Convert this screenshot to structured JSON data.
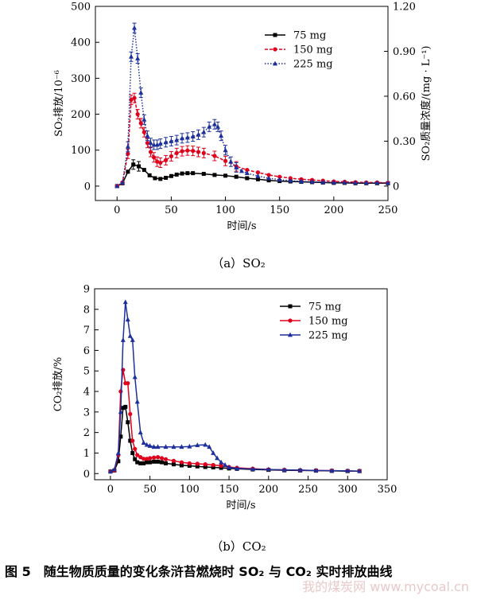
{
  "chart_data": [
    {
      "type": "line",
      "panel_caption": "（a）SO₂",
      "xlabel": "时间/s",
      "ylabel": "SO₂排放/10⁻⁶",
      "y2label": "SO₂质量浓度/(mg · L⁻¹)",
      "xlim": [
        -20,
        250
      ],
      "ylim": [
        -40,
        500
      ],
      "y2lim": [
        -0.096,
        1.2
      ],
      "xticks": [
        0,
        50,
        100,
        150,
        200,
        250
      ],
      "yticks": [
        0,
        100,
        200,
        300,
        400,
        500
      ],
      "y2ticks": [
        "0",
        "0.30",
        "0.60",
        "0.90",
        "1.20"
      ],
      "legend_position": "top-right",
      "series": [
        {
          "name": "75 mg",
          "color": "#000000",
          "marker": "square",
          "linestyle": "solid",
          "x": [
            0,
            5,
            10,
            15,
            20,
            25,
            30,
            35,
            40,
            45,
            50,
            55,
            60,
            65,
            70,
            80,
            90,
            100,
            110,
            120,
            130,
            140,
            150,
            160,
            170,
            180,
            190,
            200,
            210,
            220,
            230,
            240,
            250
          ],
          "y": [
            0,
            8,
            40,
            60,
            55,
            45,
            30,
            22,
            20,
            23,
            28,
            32,
            35,
            36,
            36,
            34,
            31,
            29,
            26,
            22,
            19,
            16,
            14,
            13,
            12,
            11,
            10,
            9,
            9,
            8,
            8,
            8,
            8
          ]
        },
        {
          "name": "150 mg",
          "color": "#e0001b",
          "marker": "circle",
          "linestyle": "dashed",
          "x": [
            0,
            5,
            10,
            13,
            16,
            19,
            22,
            25,
            28,
            31,
            34,
            37,
            40,
            45,
            50,
            55,
            60,
            65,
            70,
            75,
            80,
            90,
            100,
            110,
            120,
            130,
            140,
            150,
            160,
            170,
            180,
            190,
            200,
            210,
            220,
            230,
            240,
            250
          ],
          "y": [
            0,
            10,
            90,
            240,
            245,
            200,
            175,
            150,
            120,
            95,
            80,
            68,
            65,
            72,
            83,
            92,
            97,
            99,
            98,
            95,
            92,
            84,
            70,
            55,
            45,
            38,
            31,
            26,
            22,
            19,
            17,
            15,
            13,
            12,
            11,
            10,
            10,
            9
          ]
        },
        {
          "name": "225 mg",
          "color": "#1c2f9c",
          "marker": "triangle",
          "linestyle": "dotted",
          "x": [
            0,
            5,
            10,
            13,
            16,
            19,
            22,
            25,
            28,
            31,
            34,
            37,
            40,
            45,
            50,
            55,
            60,
            65,
            70,
            75,
            80,
            85,
            90,
            93,
            96,
            100,
            105,
            110,
            115,
            120,
            130,
            140,
            150,
            160,
            170,
            180,
            190,
            200,
            210,
            220,
            230,
            240,
            250
          ],
          "y": [
            0,
            10,
            110,
            360,
            440,
            355,
            260,
            185,
            140,
            120,
            115,
            115,
            118,
            122,
            125,
            128,
            133,
            135,
            138,
            143,
            150,
            165,
            172,
            165,
            140,
            100,
            68,
            52,
            42,
            36,
            28,
            22,
            18,
            15,
            13,
            12,
            11,
            10,
            10,
            9,
            9,
            9,
            9
          ]
        }
      ]
    },
    {
      "type": "line",
      "panel_caption": "（b）CO₂",
      "xlabel": "时间/s",
      "ylabel": "CO₂排放/%",
      "xlim": [
        -20,
        350
      ],
      "ylim": [
        -0.3,
        9
      ],
      "xticks": [
        0,
        50,
        100,
        150,
        200,
        250,
        300,
        350
      ],
      "yticks": [
        0,
        1,
        2,
        3,
        4,
        5,
        6,
        7,
        8,
        9
      ],
      "legend_position": "top-right",
      "series": [
        {
          "name": "75 mg",
          "color": "#000000",
          "marker": "square",
          "linestyle": "solid",
          "x": [
            0,
            5,
            10,
            13,
            16,
            19,
            22,
            25,
            28,
            31,
            34,
            38,
            42,
            46,
            50,
            55,
            60,
            65,
            70,
            80,
            90,
            100,
            110,
            120,
            130,
            140,
            150,
            160,
            180,
            200,
            220,
            240,
            260,
            280,
            300,
            315
          ],
          "y": [
            0.1,
            0.15,
            0.6,
            1.8,
            3.2,
            3.25,
            2.5,
            1.6,
            1.0,
            0.7,
            0.55,
            0.5,
            0.5,
            0.55,
            0.55,
            0.58,
            0.58,
            0.55,
            0.5,
            0.45,
            0.4,
            0.38,
            0.35,
            0.32,
            0.3,
            0.28,
            0.25,
            0.23,
            0.2,
            0.18,
            0.16,
            0.15,
            0.14,
            0.13,
            0.12,
            0.12
          ]
        },
        {
          "name": "150 mg",
          "color": "#e0001b",
          "marker": "circle",
          "linestyle": "solid",
          "x": [
            0,
            5,
            10,
            13,
            16,
            19,
            22,
            25,
            28,
            31,
            34,
            38,
            42,
            46,
            50,
            55,
            60,
            65,
            70,
            80,
            90,
            100,
            110,
            120,
            130,
            140,
            150,
            160,
            180,
            200,
            220,
            240,
            260,
            280,
            300,
            315
          ],
          "y": [
            0.1,
            0.15,
            0.9,
            4.0,
            5.05,
            4.4,
            4.4,
            2.9,
            1.6,
            1.2,
            0.9,
            0.8,
            0.72,
            0.72,
            0.75,
            0.78,
            0.8,
            0.75,
            0.7,
            0.62,
            0.55,
            0.5,
            0.48,
            0.45,
            0.42,
            0.38,
            0.32,
            0.28,
            0.24,
            0.2,
            0.18,
            0.16,
            0.15,
            0.14,
            0.13,
            0.12
          ]
        },
        {
          "name": "225 mg",
          "color": "#1c2f9c",
          "marker": "triangle",
          "linestyle": "solid",
          "x": [
            0,
            5,
            10,
            13,
            16,
            19,
            22,
            25,
            28,
            31,
            34,
            38,
            42,
            46,
            50,
            55,
            60,
            70,
            80,
            90,
            100,
            110,
            120,
            125,
            130,
            135,
            140,
            145,
            150,
            160,
            180,
            200,
            220,
            240,
            260,
            280,
            300,
            315
          ],
          "y": [
            0.1,
            0.2,
            1.0,
            3.0,
            6.5,
            8.35,
            7.5,
            6.7,
            6.5,
            4.7,
            3.5,
            2.0,
            1.5,
            1.4,
            1.35,
            1.3,
            1.3,
            1.3,
            1.3,
            1.3,
            1.32,
            1.38,
            1.4,
            1.3,
            1.0,
            0.75,
            0.55,
            0.42,
            0.3,
            0.25,
            0.22,
            0.2,
            0.18,
            0.17,
            0.15,
            0.14,
            0.13,
            0.12
          ]
        }
      ]
    }
  ],
  "figure_caption": {
    "number": "图 5",
    "text": "随生物质质量的变化条浒苔燃烧时 SO₂ 与 CO₂ 实时排放曲线"
  },
  "watermark": "我的煤炭网 www.mycoal.cn"
}
